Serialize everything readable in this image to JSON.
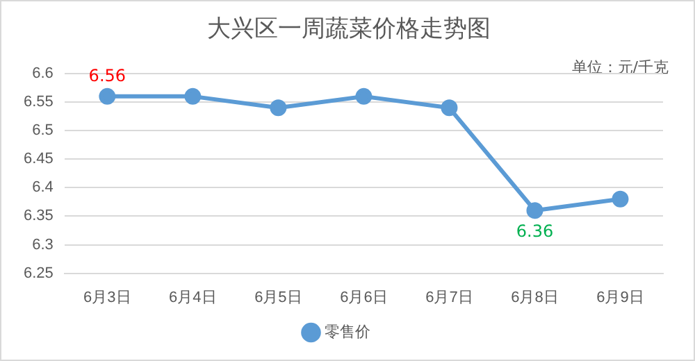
{
  "chart_data": {
    "type": "line",
    "title": "大兴区一周蔬菜价格走势图",
    "annotations": [
      "单位：元/千克"
    ],
    "categories": [
      "6月3日",
      "6月4日",
      "6月5日",
      "6月6日",
      "6月7日",
      "6月8日",
      "6月9日"
    ],
    "series": [
      {
        "name": "零售价",
        "color": "#5b9bd5",
        "values": [
          6.56,
          6.56,
          6.54,
          6.56,
          6.54,
          6.36,
          6.38
        ],
        "value_labels": [
          "6.56",
          null,
          null,
          null,
          null,
          "6.36",
          null
        ]
      }
    ],
    "ylim": [
      6.25,
      6.6
    ],
    "yticks": [
      6.25,
      6.3,
      6.35,
      6.4,
      6.45,
      6.5,
      6.55,
      6.6
    ],
    "grid": "y",
    "legend": "bottom",
    "marker": "circle",
    "line_style": "solid"
  }
}
